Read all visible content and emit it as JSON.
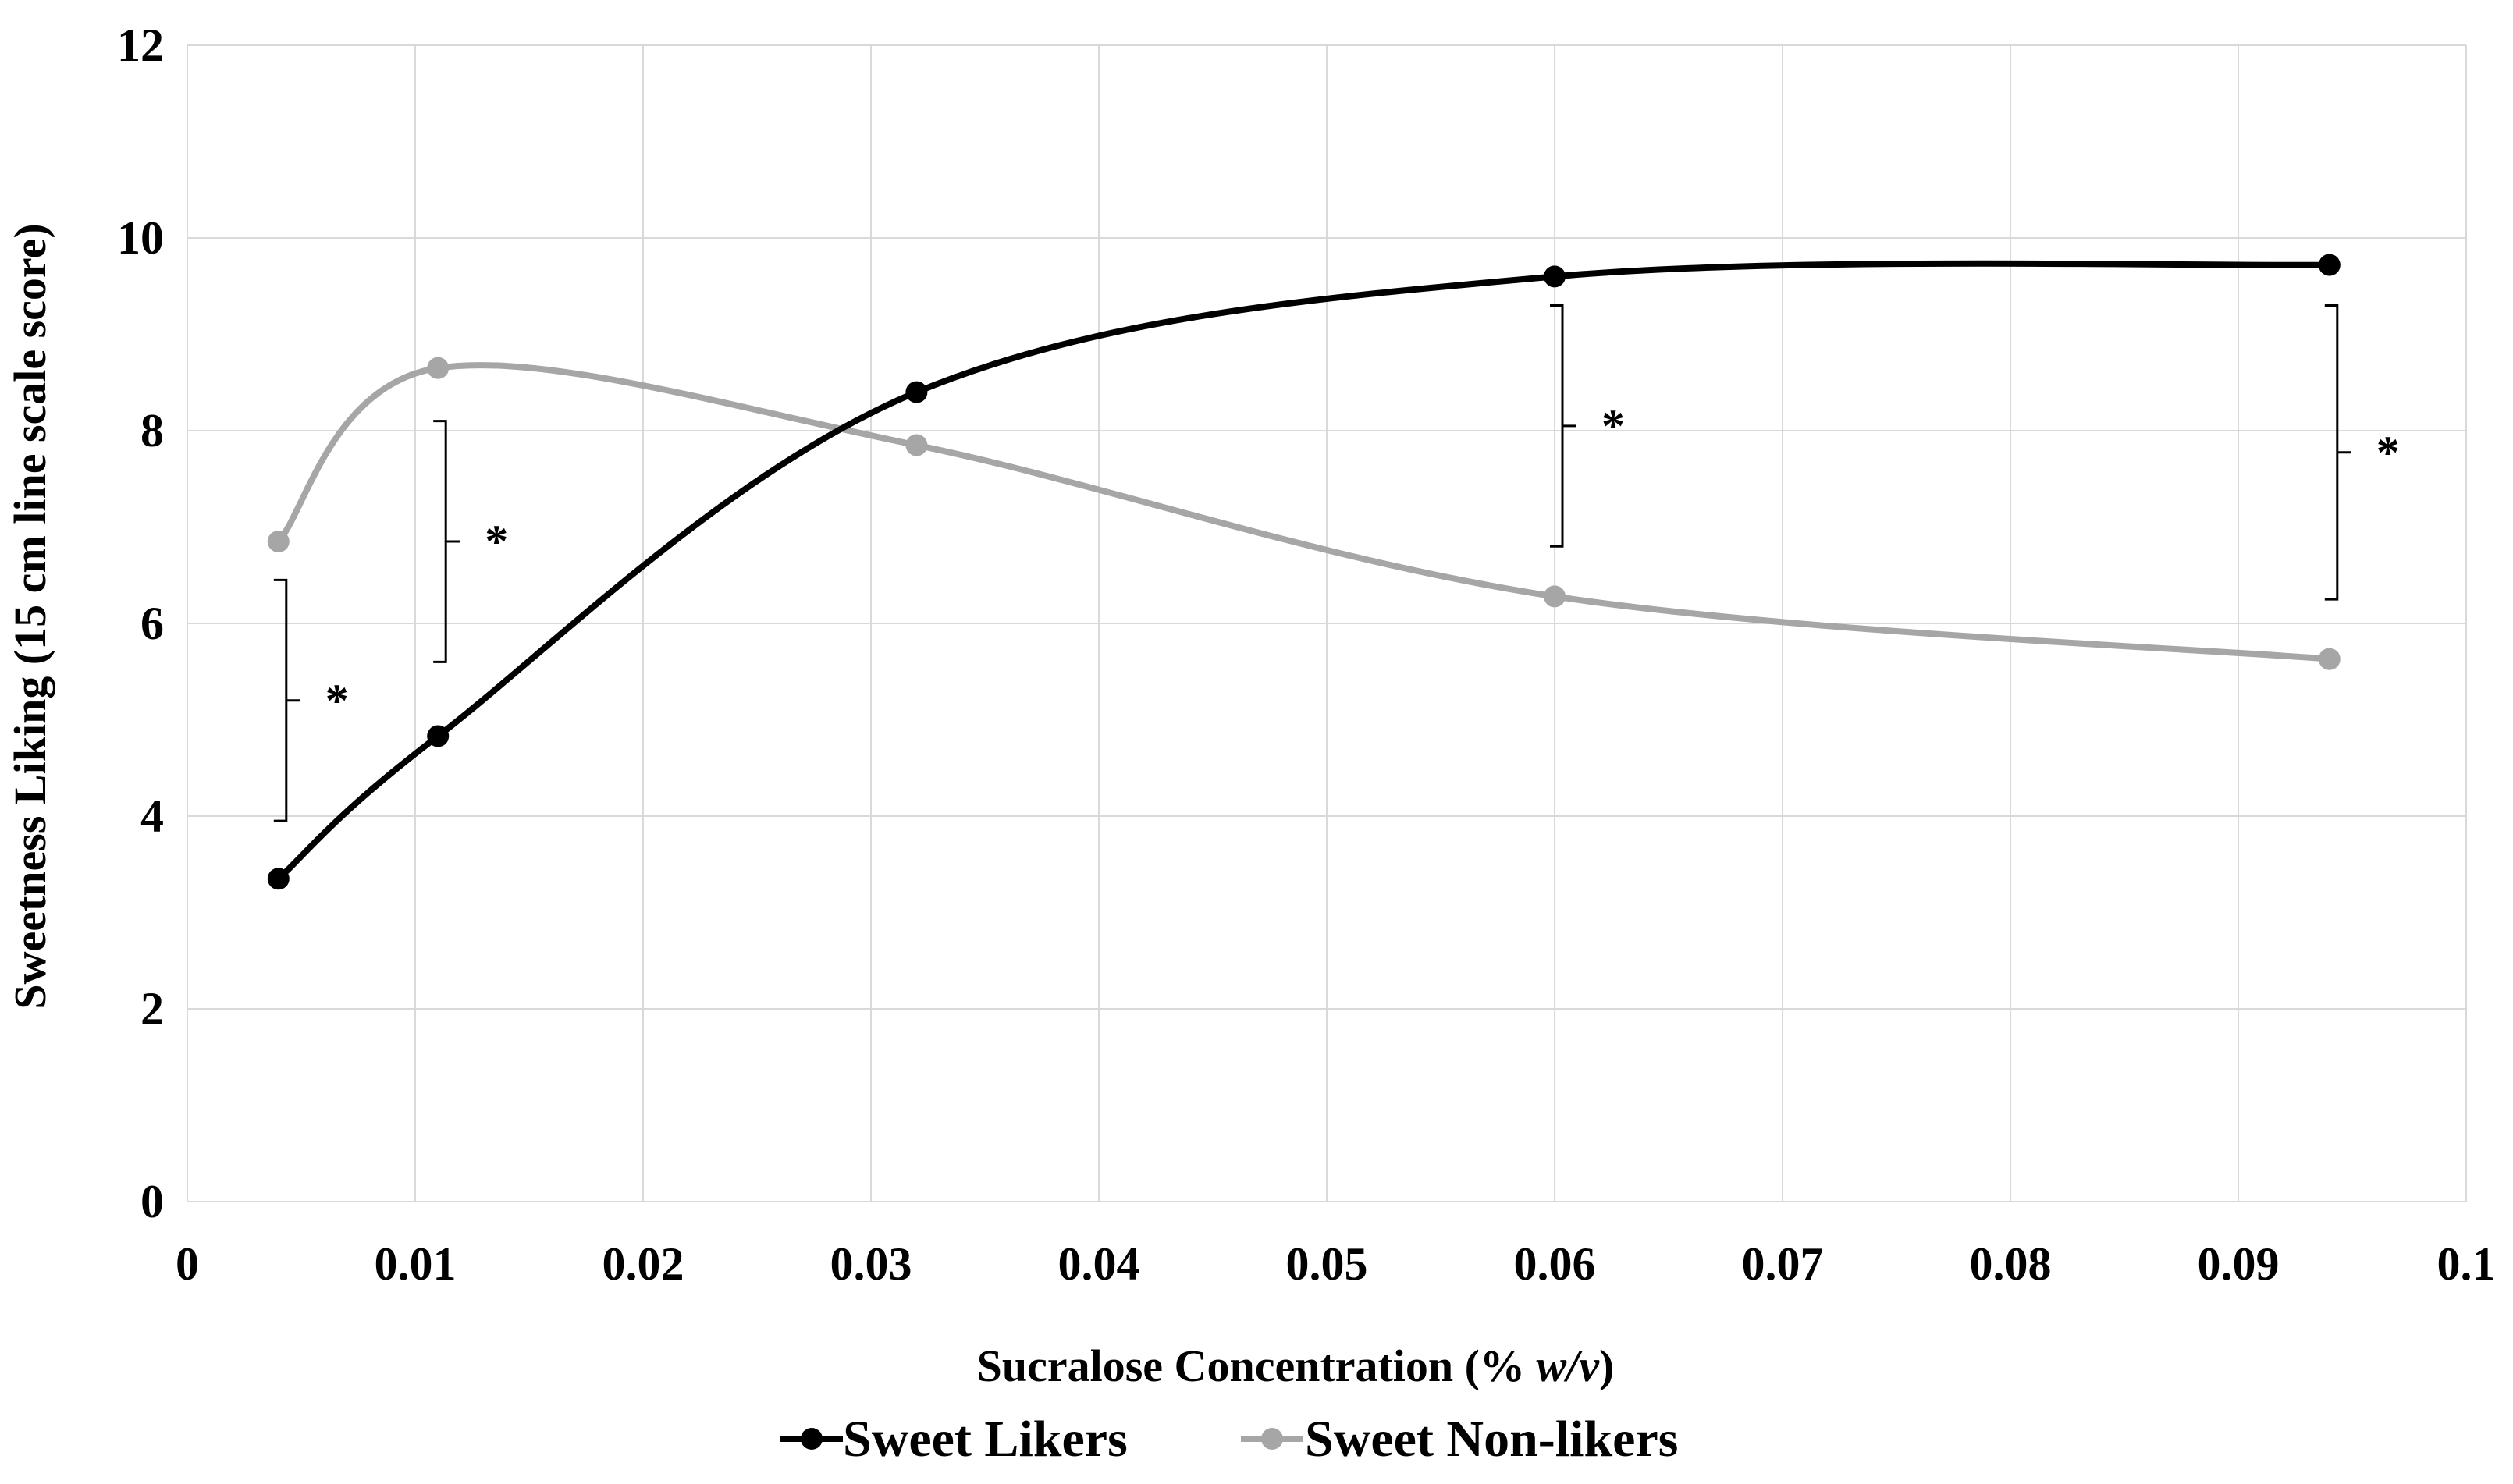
{
  "chart_data": {
    "type": "line",
    "title": "",
    "xlabel": "Sucralose Concentration (% w/v)",
    "xlabel_parts": {
      "prefix": "Sucralose Concentration (% ",
      "italic": "w/v",
      "suffix": ")"
    },
    "ylabel": "Sweetness Liking (15 cm line scale score)",
    "xlim": [
      0,
      0.1
    ],
    "ylim": [
      0,
      12
    ],
    "x_ticks": [
      0,
      0.01,
      0.02,
      0.03,
      0.04,
      0.05,
      0.06,
      0.07,
      0.08,
      0.09,
      0.1
    ],
    "x_tick_labels": [
      "0",
      "0.01",
      "0.02",
      "0.03",
      "0.04",
      "0.05",
      "0.06",
      "0.07",
      "0.08",
      "0.09",
      "0.1"
    ],
    "y_ticks": [
      0,
      2,
      4,
      6,
      8,
      10,
      12
    ],
    "y_tick_labels": [
      "0",
      "2",
      "4",
      "6",
      "8",
      "10",
      "12"
    ],
    "grid": true,
    "legend_position": "bottom",
    "series": [
      {
        "name": "Sweet Likers",
        "color": "#000000",
        "x": [
          0.004,
          0.011,
          0.032,
          0.06,
          0.094
        ],
        "y": [
          3.35,
          4.83,
          8.4,
          9.6,
          9.72
        ]
      },
      {
        "name": "Sweet Non-likers",
        "color": "#a6a6a6",
        "x": [
          0.004,
          0.011,
          0.032,
          0.06,
          0.094
        ],
        "y": [
          6.85,
          8.65,
          7.85,
          6.28,
          5.63
        ]
      }
    ],
    "annotations": [
      {
        "label": "*",
        "x": 0.004,
        "y_low": 3.95,
        "y_high": 6.45
      },
      {
        "label": "*",
        "x": 0.011,
        "y_low": 5.6,
        "y_high": 8.1
      },
      {
        "label": "*",
        "x": 0.06,
        "y_low": 6.8,
        "y_high": 9.3
      },
      {
        "label": "*",
        "x": 0.094,
        "y_low": 6.25,
        "y_high": 9.3
      }
    ]
  }
}
